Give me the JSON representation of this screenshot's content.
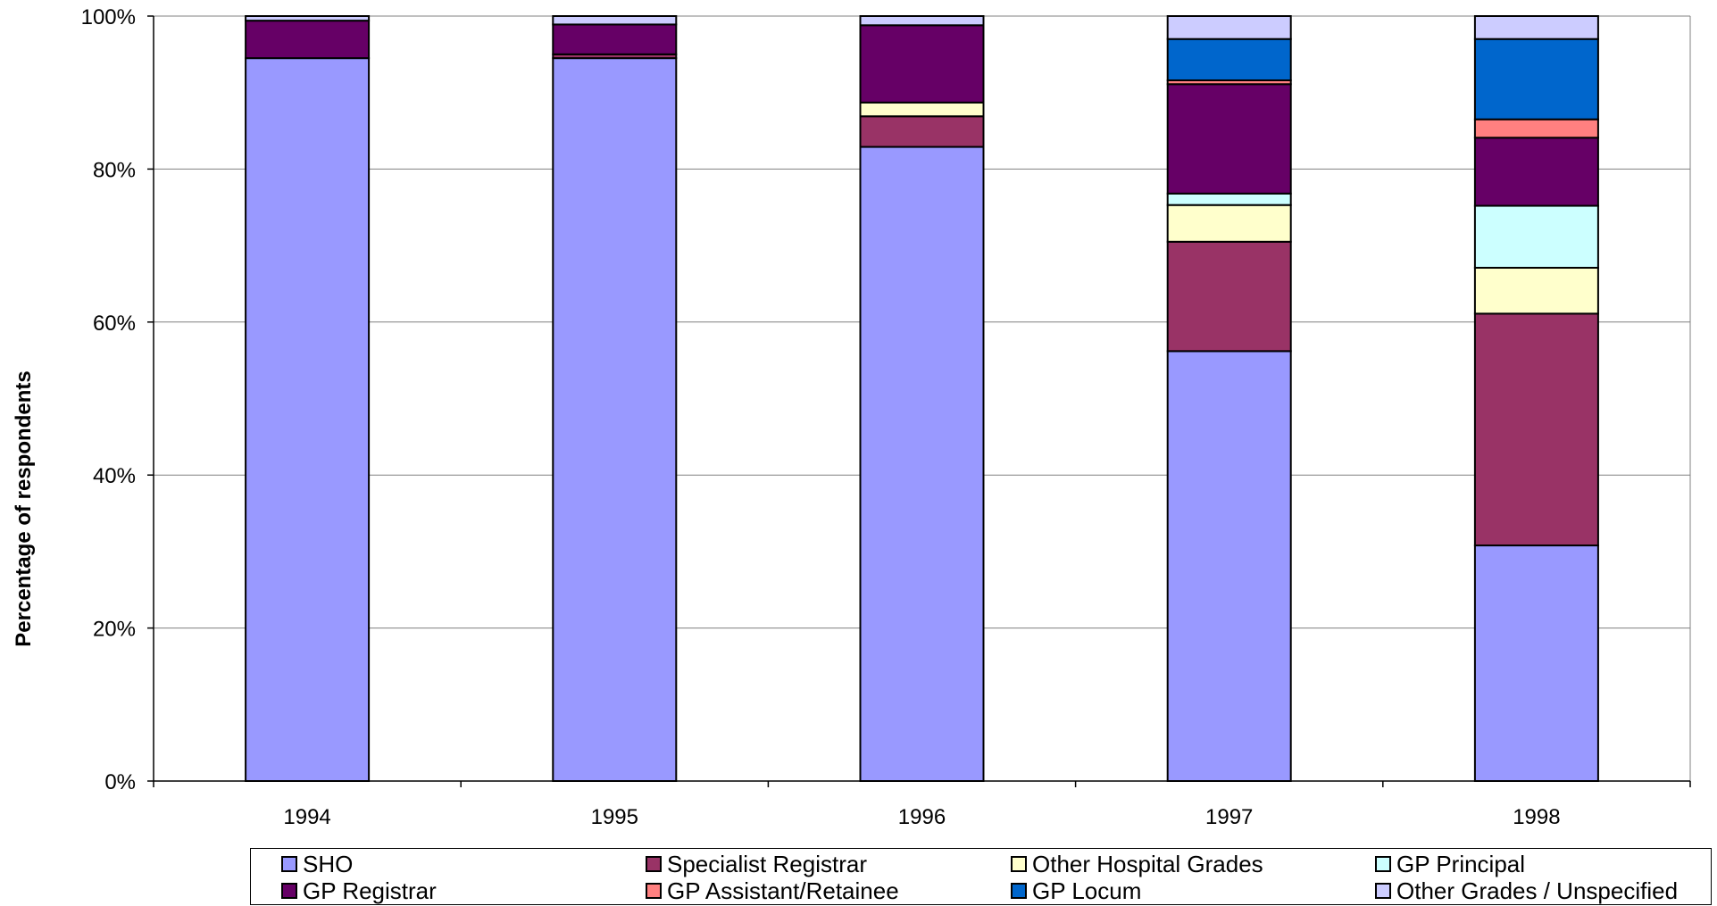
{
  "chart_data": {
    "type": "bar",
    "stacked": true,
    "percent": true,
    "ylabel": "Percentage of respondents",
    "xlabel": "",
    "ylim": [
      0,
      100
    ],
    "yticks": [
      "0%",
      "20%",
      "40%",
      "60%",
      "80%",
      "100%"
    ],
    "categories": [
      "1994",
      "1995",
      "1996",
      "1997",
      "1998"
    ],
    "grid": true,
    "legend_position": "bottom",
    "series": [
      {
        "name": "SHO",
        "color": "#9999FF",
        "values": [
          94.5,
          94.5,
          82.9,
          56.2,
          30.8
        ]
      },
      {
        "name": "Specialist Registrar",
        "color": "#993366",
        "values": [
          0.0,
          0.5,
          4.0,
          14.3,
          30.3
        ]
      },
      {
        "name": "Other Hospital Grades",
        "color": "#FFFFCC",
        "values": [
          0.0,
          0.0,
          1.8,
          4.8,
          6.0
        ]
      },
      {
        "name": "GP Principal",
        "color": "#CCFFFF",
        "values": [
          0.0,
          0.0,
          0.0,
          1.5,
          8.1
        ]
      },
      {
        "name": "GP Registrar",
        "color": "#660066",
        "values": [
          4.9,
          3.9,
          10.1,
          14.3,
          8.9
        ]
      },
      {
        "name": "GP Assistant/Retainee",
        "color": "#FF8080",
        "values": [
          0.0,
          0.0,
          0.0,
          0.5,
          2.4
        ]
      },
      {
        "name": "GP Locum",
        "color": "#0066CC",
        "values": [
          0.0,
          0.0,
          0.0,
          5.4,
          10.5
        ]
      },
      {
        "name": "Other Grades / Unspecified",
        "color": "#CCCCFF",
        "values": [
          0.6,
          1.1,
          1.2,
          3.0,
          3.0
        ]
      }
    ]
  }
}
